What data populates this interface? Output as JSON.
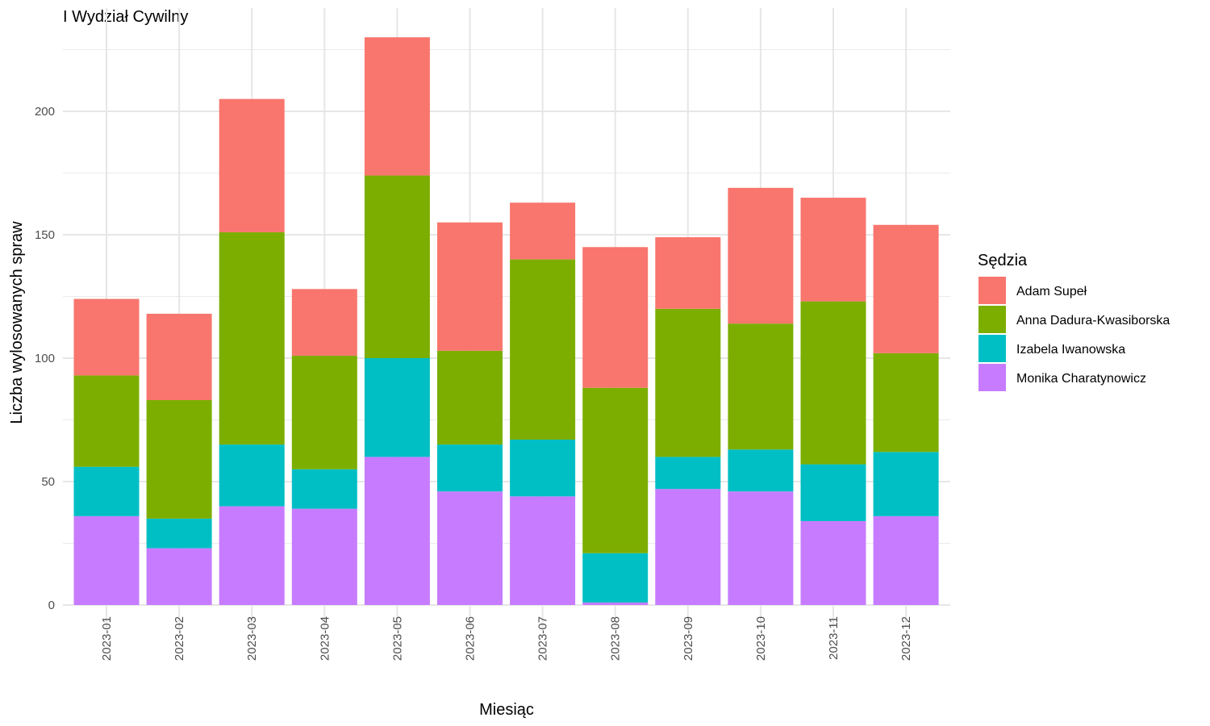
{
  "chart_data": {
    "type": "bar",
    "stacked": true,
    "title": "I Wydział Cywilny",
    "xlabel": "Miesiąc",
    "ylabel": "Liczba wylosowanych spraw",
    "ylim": [
      0,
      240
    ],
    "yticks": [
      0,
      50,
      100,
      150,
      200
    ],
    "grid": true,
    "legend_title": "Sędzia",
    "legend_position": "right",
    "categories": [
      "2023-01",
      "2023-02",
      "2023-03",
      "2023-04",
      "2023-05",
      "2023-06",
      "2023-07",
      "2023-08",
      "2023-09",
      "2023-10",
      "2023-11",
      "2023-12"
    ],
    "series": [
      {
        "name": "Monika Charatynowicz",
        "color": "#C77CFF",
        "values": [
          36,
          23,
          40,
          39,
          60,
          46,
          44,
          1,
          47,
          46,
          34,
          36
        ]
      },
      {
        "name": "Izabela Iwanowska",
        "color": "#00BFC4",
        "values": [
          20,
          12,
          25,
          16,
          40,
          19,
          23,
          20,
          13,
          17,
          23,
          26
        ]
      },
      {
        "name": "Anna Dadura-Kwasiborska",
        "color": "#7CAE00",
        "values": [
          37,
          48,
          86,
          46,
          74,
          38,
          73,
          67,
          60,
          51,
          66,
          40
        ]
      },
      {
        "name": "Adam Supeł",
        "color": "#F8766D",
        "values": [
          31,
          35,
          54,
          27,
          56,
          52,
          23,
          57,
          29,
          55,
          42,
          52
        ]
      }
    ],
    "legend_order": [
      "Adam Supeł",
      "Anna Dadura-Kwasiborska",
      "Izabela Iwanowska",
      "Monika Charatynowicz"
    ]
  }
}
